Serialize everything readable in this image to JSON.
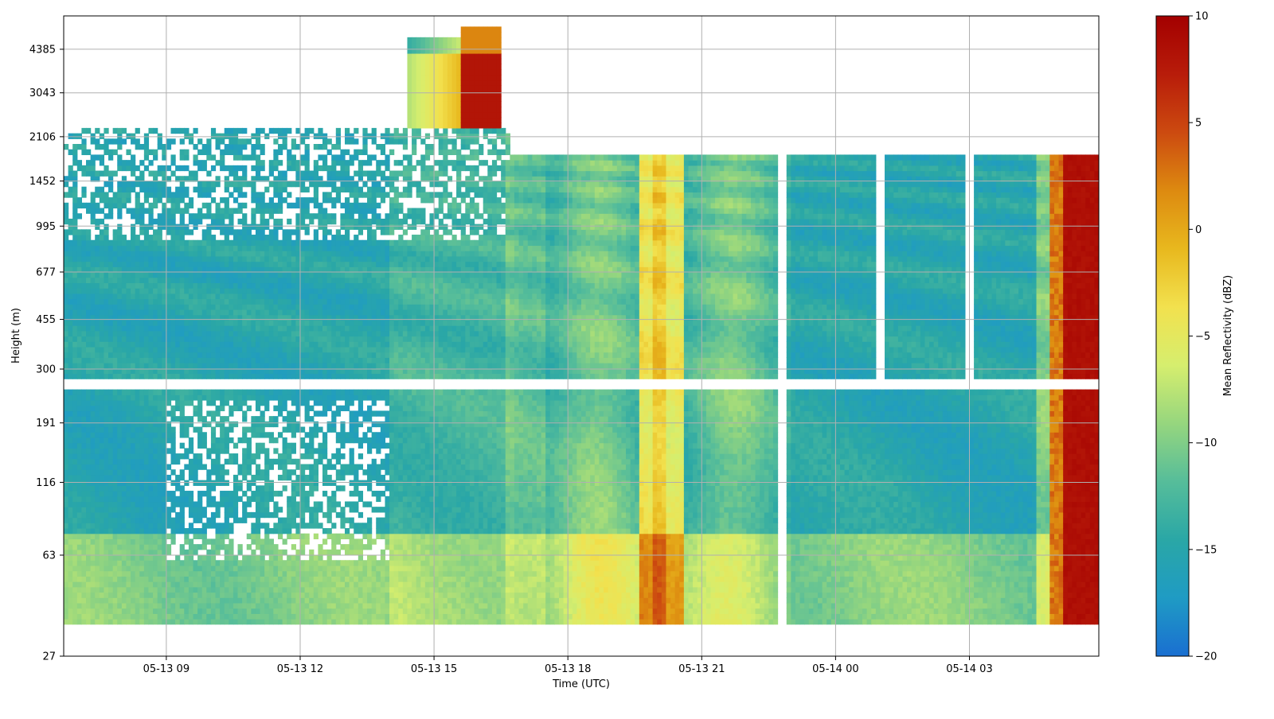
{
  "chart_data": {
    "type": "heatmap",
    "title": "",
    "xlabel": "Time (UTC)",
    "ylabel": "Height (m)",
    "x_range_hours": [
      6.7,
      29.9
    ],
    "x_range_labels": [
      "05-13 06:42",
      "05-14 05:54"
    ],
    "y_range_m": [
      27,
      5800
    ],
    "x_ticks": [
      {
        "label": "05-13 09",
        "value": 9
      },
      {
        "label": "05-13 12",
        "value": 12
      },
      {
        "label": "05-13 15",
        "value": 15
      },
      {
        "label": "05-13 18",
        "value": 18
      },
      {
        "label": "05-13 21",
        "value": 21
      },
      {
        "label": "05-14 00",
        "value": 24
      },
      {
        "label": "05-14 03",
        "value": 27
      }
    ],
    "y_ticks": [
      {
        "label": "27",
        "value": 27
      },
      {
        "label": "63",
        "value": 63
      },
      {
        "label": "116",
        "value": 116
      },
      {
        "label": "191",
        "value": 191
      },
      {
        "label": "300",
        "value": 300
      },
      {
        "label": "455",
        "value": 455
      },
      {
        "label": "677",
        "value": 677
      },
      {
        "label": "995",
        "value": 995
      },
      {
        "label": "1452",
        "value": 1452
      },
      {
        "label": "2106",
        "value": 2106
      },
      {
        "label": "3043",
        "value": 3043
      },
      {
        "label": "4385",
        "value": 4385
      }
    ],
    "grid": true,
    "colorbar": {
      "label": "Mean Reflectivity (dBZ)",
      "min": -20,
      "max": 10,
      "ticks": [
        "10",
        "5",
        "0",
        "−5",
        "−10",
        "−15",
        "−20"
      ],
      "tick_values": [
        10,
        5,
        0,
        -5,
        -10,
        -15,
        -20
      ],
      "colormap": [
        "#1a6fd1",
        "#1f9bc4",
        "#2aa7a6",
        "#56bd9a",
        "#96d67e",
        "#d6ee6e",
        "#f2e14e",
        "#e8b81e",
        "#dd8a10",
        "#cc4a10",
        "#b81c0a",
        "#a30000"
      ]
    }
  }
}
